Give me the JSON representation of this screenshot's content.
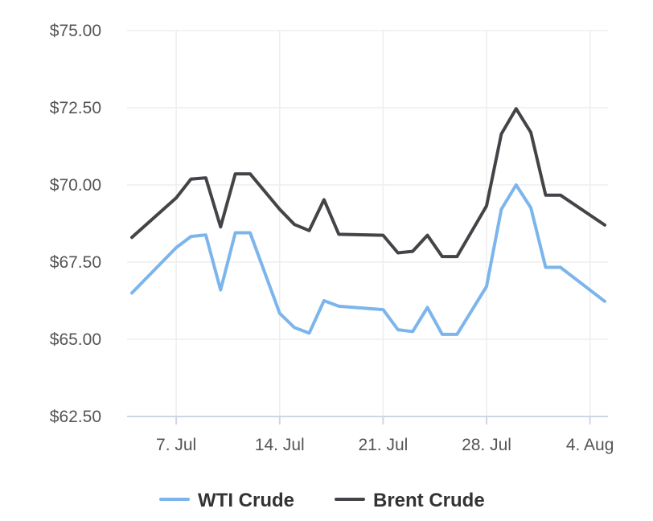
{
  "chart_data": {
    "type": "line",
    "title": "",
    "xlabel": "",
    "ylabel": "",
    "x_start": "2025-07-04",
    "x": [
      "2025-07-04",
      "2025-07-07",
      "2025-07-08",
      "2025-07-09",
      "2025-07-10",
      "2025-07-11",
      "2025-07-12",
      "2025-07-14",
      "2025-07-15",
      "2025-07-16",
      "2025-07-17",
      "2025-07-18",
      "2025-07-21",
      "2025-07-22",
      "2025-07-23",
      "2025-07-24",
      "2025-07-25",
      "2025-07-26",
      "2025-07-28",
      "2025-07-29",
      "2025-07-30",
      "2025-07-31",
      "2025-08-01",
      "2025-08-02",
      "2025-08-05"
    ],
    "x_ticks": [
      {
        "date": "2025-07-07",
        "label": "7. Jul"
      },
      {
        "date": "2025-07-14",
        "label": "14. Jul"
      },
      {
        "date": "2025-07-21",
        "label": "21. Jul"
      },
      {
        "date": "2025-07-28",
        "label": "28. Jul"
      },
      {
        "date": "2025-08-04",
        "label": "4. Aug"
      }
    ],
    "xlim": [
      "2025-07-04",
      "2025-08-05"
    ],
    "ylim": [
      62.5,
      75.0
    ],
    "y_ticks": [
      {
        "value": 62.5,
        "label": "$62.50"
      },
      {
        "value": 65.0,
        "label": "$65.00"
      },
      {
        "value": 67.5,
        "label": "$67.50"
      },
      {
        "value": 70.0,
        "label": "$70.00"
      },
      {
        "value": 72.5,
        "label": "$72.50"
      },
      {
        "value": 75.0,
        "label": "$75.00"
      }
    ],
    "grid": true,
    "legend_position": "bottom-center",
    "series": [
      {
        "name": "WTI Crude",
        "color": "#7cb5ec",
        "values": [
          66.5,
          67.97,
          68.33,
          68.38,
          66.6,
          68.45,
          68.45,
          65.84,
          65.38,
          65.2,
          66.25,
          66.07,
          65.96,
          65.31,
          65.25,
          66.03,
          65.16,
          65.16,
          66.71,
          69.21,
          70.0,
          69.26,
          67.33,
          67.33,
          66.23
        ]
      },
      {
        "name": "Brent Crude",
        "color": "#434348",
        "values": [
          68.3,
          69.58,
          70.19,
          70.23,
          68.64,
          70.36,
          70.36,
          69.21,
          68.72,
          68.52,
          69.52,
          68.4,
          68.37,
          67.8,
          67.85,
          68.37,
          67.68,
          67.68,
          69.32,
          71.65,
          72.47,
          71.7,
          69.67,
          69.67,
          68.7
        ]
      }
    ]
  }
}
